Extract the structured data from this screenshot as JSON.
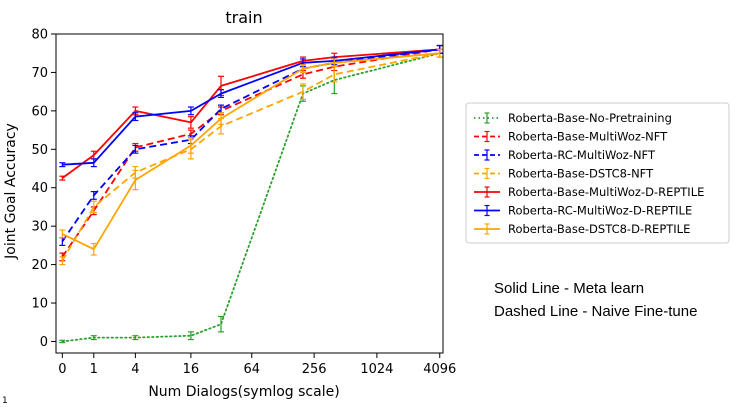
{
  "chart_data": {
    "type": "line",
    "title": "train",
    "xlabel": "Num Dialogs(symlog scale)",
    "ylabel": "Joint Goal Accuracy",
    "x_scale": "symlog",
    "x": [
      0,
      1,
      4,
      16,
      32,
      200,
      400,
      4096
    ],
    "xticks": [
      0,
      1,
      4,
      16,
      64,
      256,
      1024,
      4096
    ],
    "xtick_labels": [
      "0",
      "1",
      "4",
      "16",
      "64",
      "256",
      "1024",
      "4096"
    ],
    "xlim": [
      -0.15,
      4400
    ],
    "ylim": [
      -3,
      80
    ],
    "yticks": [
      0,
      10,
      20,
      30,
      40,
      50,
      60,
      70,
      80
    ],
    "legend_position": "right",
    "grid": false,
    "series": [
      {
        "name": "Roberta-Base-No-Pretraining",
        "color": "#2ca02c",
        "style": "dotted",
        "values": [
          0,
          1,
          1,
          1.5,
          4.5,
          64.5,
          68,
          75
        ],
        "errors": [
          0.3,
          0.5,
          0.5,
          1,
          2,
          2,
          3.5,
          1
        ]
      },
      {
        "name": "Roberta-Base-MultiWoz-NFT",
        "color": "#ff0000",
        "style": "dashed",
        "values": [
          22,
          34,
          50.5,
          54,
          60,
          69.5,
          71.5,
          76
        ],
        "errors": [
          1,
          1,
          1,
          1,
          1,
          1,
          1,
          1
        ]
      },
      {
        "name": "Roberta-RC-MultiWoz-NFT",
        "color": "#0000ff",
        "style": "dashed",
        "values": [
          26,
          38,
          50,
          52.5,
          60.5,
          71,
          72.5,
          76
        ],
        "errors": [
          1,
          1,
          1,
          1,
          1,
          1,
          1,
          1
        ]
      },
      {
        "name": "Roberta-Base-DSTC8-NFT",
        "color": "#ffa500",
        "style": "dashed",
        "values": [
          21,
          35,
          44,
          50,
          56,
          65,
          69.5,
          75
        ],
        "errors": [
          1,
          1.5,
          1.5,
          2.5,
          2,
          2,
          2,
          1
        ]
      },
      {
        "name": "Roberta-Base-MultiWoz-D-REPTILE",
        "color": "#ff0000",
        "style": "solid",
        "values": [
          42.5,
          48.5,
          60,
          57,
          66.5,
          73,
          74,
          76
        ],
        "errors": [
          0.5,
          1,
          1,
          1.5,
          2.5,
          1,
          1,
          1
        ]
      },
      {
        "name": "Roberta-RC-MultiWoz-D-REPTILE",
        "color": "#0000ff",
        "style": "solid",
        "values": [
          46,
          46.5,
          58.5,
          60,
          64.5,
          72.5,
          73,
          76
        ],
        "errors": [
          0.5,
          1,
          1,
          1,
          1,
          1,
          1,
          1
        ]
      },
      {
        "name": "Roberta-Base-DSTC8-D-REPTILE",
        "color": "#ffa500",
        "style": "solid",
        "values": [
          28,
          24,
          42,
          51,
          58,
          71,
          72.5,
          75
        ],
        "errors": [
          1,
          1.5,
          2.5,
          2,
          1.5,
          1,
          1,
          1
        ]
      }
    ]
  },
  "notes": {
    "solid": "Solid Line - Meta learn",
    "dashed": "Dashed Line - Naive Fine-tune"
  },
  "footnote": "1"
}
